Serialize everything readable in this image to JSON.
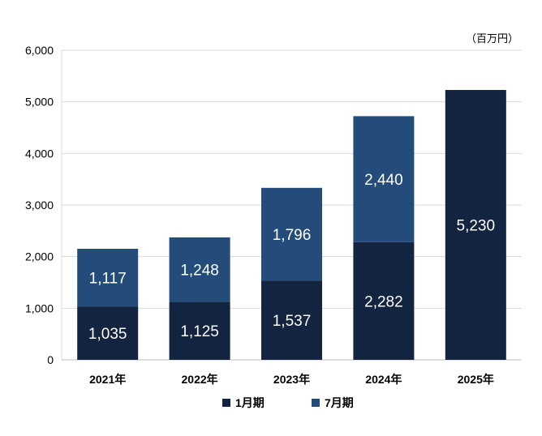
{
  "chart_data": {
    "type": "bar",
    "stacked": true,
    "unit_label": "（百万円）",
    "categories": [
      "2021年",
      "2022年",
      "2023年",
      "2024年",
      "2025年"
    ],
    "series": [
      {
        "name": "1月期",
        "color": "#12243f",
        "values": [
          1035,
          1125,
          1537,
          2282,
          5230
        ],
        "labels": [
          "1,035",
          "1,125",
          "1,537",
          "2,282",
          "5,230"
        ]
      },
      {
        "name": "7月期",
        "color": "#244c7b",
        "values": [
          1117,
          1248,
          1796,
          2440,
          null
        ],
        "labels": [
          "1,117",
          "1,248",
          "1,796",
          "2,440",
          ""
        ]
      }
    ],
    "ylim": [
      0,
      6000
    ],
    "yticks": [
      0,
      1000,
      2000,
      3000,
      4000,
      5000,
      6000
    ],
    "ytick_labels": [
      "0",
      "1,000",
      "2,000",
      "3,000",
      "4,000",
      "5,000",
      "6,000"
    ],
    "grid": true,
    "legend": "bottom"
  }
}
